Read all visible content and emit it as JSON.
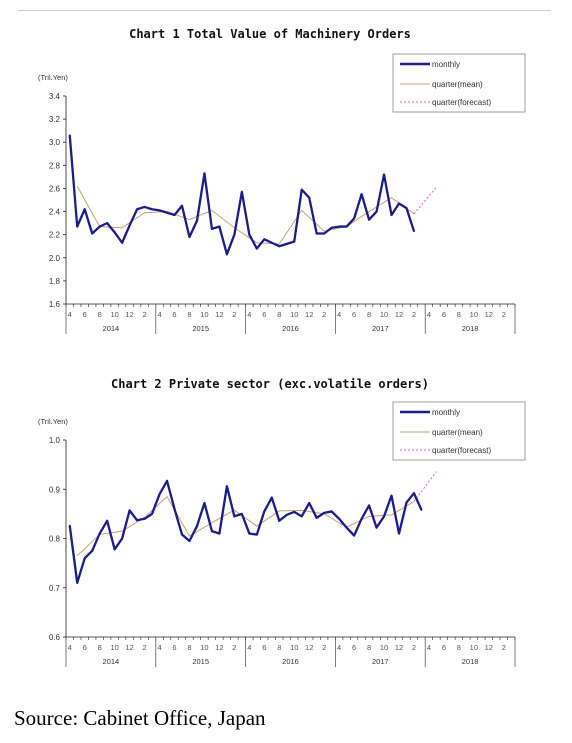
{
  "source_text": "Source: Cabinet Office, Japan",
  "colors": {
    "monthly": "#1c1c8a",
    "mean": "#c8a070",
    "forecast": "#cc66cc"
  },
  "chart_data": [
    {
      "type": "line",
      "title": "Chart 1 Total Value of Machinery Orders",
      "unit_label": "(Tril.Yen)",
      "ylim": [
        1.6,
        3.4
      ],
      "yticks": [
        "1.6",
        "1.8",
        "2.0",
        "2.2",
        "2.4",
        "2.6",
        "2.8",
        "3.0",
        "3.2",
        "3.4"
      ],
      "month_labels": [
        "4",
        "6",
        "8",
        "10",
        "12",
        "2",
        "4",
        "6",
        "8",
        "10",
        "12",
        "2",
        "4",
        "6",
        "8",
        "10",
        "12",
        "2",
        "4",
        "6",
        "8",
        "10",
        "12",
        "2",
        "4",
        "6",
        "8",
        "10",
        "12",
        "2"
      ],
      "year_labels": [
        "2014",
        "2015",
        "2016",
        "2017",
        "2018"
      ],
      "legend": [
        "monthly",
        "quarter(mean)",
        "quarter(forecast)"
      ],
      "grid": false,
      "monthly": [
        3.06,
        2.27,
        2.42,
        2.21,
        2.27,
        2.3,
        2.22,
        2.13,
        2.28,
        2.42,
        2.44,
        2.42,
        2.41,
        2.39,
        2.37,
        2.45,
        2.18,
        2.32,
        2.73,
        2.25,
        2.27,
        2.03,
        2.2,
        2.57,
        2.2,
        2.08,
        2.16,
        2.13,
        2.1,
        2.12,
        2.14,
        2.59,
        2.52,
        2.21,
        2.21,
        2.26,
        2.27,
        2.27,
        2.34,
        2.55,
        2.33,
        2.4,
        2.72,
        2.37,
        2.47,
        2.43,
        2.23
      ],
      "quarter_mean": [
        [
          1,
          2.62
        ],
        [
          4,
          2.27
        ],
        [
          7,
          2.26
        ],
        [
          10,
          2.39
        ],
        [
          13,
          2.4
        ],
        [
          16,
          2.33
        ],
        [
          19,
          2.41
        ],
        [
          22,
          2.26
        ],
        [
          25,
          2.13
        ],
        [
          28,
          2.12
        ],
        [
          31,
          2.41
        ],
        [
          34,
          2.23
        ],
        [
          37,
          2.27
        ],
        [
          40,
          2.4
        ],
        [
          43,
          2.52
        ],
        [
          46,
          2.38
        ]
      ],
      "quarter_forecast": [
        [
          46,
          2.38
        ],
        [
          49,
          2.61
        ]
      ]
    },
    {
      "type": "line",
      "title": "Chart 2 Private sector (exc.volatile orders)",
      "unit_label": "(Tril.Yen)",
      "ylim": [
        0.6,
        1.0
      ],
      "yticks": [
        "0.6",
        "0.7",
        "0.8",
        "0.9",
        "1.0"
      ],
      "month_labels": [
        "4",
        "6",
        "8",
        "10",
        "12",
        "2",
        "4",
        "6",
        "8",
        "10",
        "12",
        "2",
        "4",
        "6",
        "8",
        "10",
        "12",
        "2",
        "4",
        "6",
        "8",
        "10",
        "12",
        "2",
        "4",
        "6",
        "8",
        "10",
        "12",
        "2"
      ],
      "year_labels": [
        "2014",
        "2015",
        "2016",
        "2017",
        "2018"
      ],
      "legend": [
        "monthly",
        "quarter(mean)",
        "quarter(forecast)"
      ],
      "grid": false,
      "monthly": [
        0.826,
        0.71,
        0.76,
        0.775,
        0.81,
        0.836,
        0.778,
        0.8,
        0.857,
        0.837,
        0.84,
        0.85,
        0.89,
        0.917,
        0.86,
        0.808,
        0.795,
        0.825,
        0.872,
        0.815,
        0.81,
        0.906,
        0.845,
        0.85,
        0.81,
        0.808,
        0.855,
        0.883,
        0.836,
        0.848,
        0.854,
        0.845,
        0.872,
        0.842,
        0.852,
        0.855,
        0.84,
        0.822,
        0.806,
        0.84,
        0.867,
        0.822,
        0.845,
        0.887,
        0.81,
        0.873,
        0.892,
        0.858
      ],
      "quarter_mean": [
        [
          1,
          0.765
        ],
        [
          4,
          0.808
        ],
        [
          7,
          0.815
        ],
        [
          10,
          0.843
        ],
        [
          13,
          0.885
        ],
        [
          16,
          0.805
        ],
        [
          19,
          0.832
        ],
        [
          22,
          0.858
        ],
        [
          25,
          0.825
        ],
        [
          28,
          0.856
        ],
        [
          31,
          0.857
        ],
        [
          34,
          0.85
        ],
        [
          37,
          0.823
        ],
        [
          40,
          0.845
        ],
        [
          43,
          0.848
        ],
        [
          46,
          0.875
        ]
      ],
      "quarter_forecast": [
        [
          46,
          0.875
        ],
        [
          49,
          0.936
        ]
      ]
    }
  ]
}
